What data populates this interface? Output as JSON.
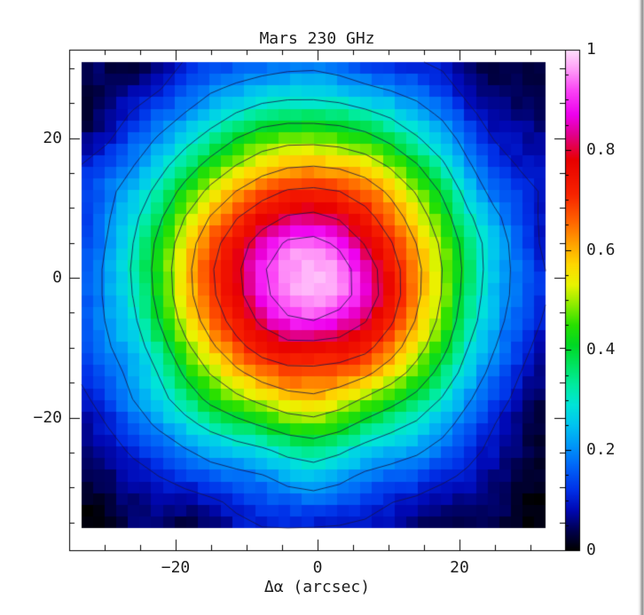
{
  "window": {
    "background_color": "#ffffff",
    "border_color": "#8e8e8e"
  },
  "chart_data": {
    "type": "heatmap",
    "title": "Mars 230 GHz",
    "xlabel": "Δα (arcsec)",
    "ylabel": "",
    "xlim": [
      -35,
      34.9
    ],
    "ylim": [
      -39,
      32.6
    ],
    "grid": "off",
    "xticks": {
      "values": [
        -20,
        0,
        20
      ],
      "labels": [
        "−20",
        "0",
        "20"
      ],
      "minor_step": 5
    },
    "yticks": {
      "values": [
        -20,
        0,
        20
      ],
      "labels": [
        "−20",
        "0",
        "20"
      ],
      "minor_step": 5
    },
    "image_extent": {
      "x": [
        -33.25,
        32.125
      ],
      "y": [
        -35.81,
        30.86
      ]
    },
    "grid_cells": 40,
    "source": {
      "center_x": -1.5,
      "center_y": -0.3,
      "radial_profile_radius_arcsec": [
        0,
        4,
        6.3,
        9.4,
        13,
        16,
        19,
        22,
        25,
        29,
        34,
        40,
        48
      ],
      "radial_profile_value": [
        0.98,
        0.95,
        0.9,
        0.8,
        0.7,
        0.6,
        0.5,
        0.4,
        0.3,
        0.2,
        0.1,
        0.04,
        0.0
      ]
    },
    "contours": {
      "levels": [
        0.1,
        0.2,
        0.3,
        0.4,
        0.5,
        0.6,
        0.7,
        0.8,
        0.9
      ],
      "color": "#181448"
    },
    "noise": {
      "seed": 9,
      "amplitude": 0.03,
      "lattice": 8,
      "pixel_jitter": 0.02
    },
    "colormap": [
      [
        0.0,
        "#000000"
      ],
      [
        0.04,
        "#000050"
      ],
      [
        0.08,
        "#0008b4"
      ],
      [
        0.12,
        "#0030e8"
      ],
      [
        0.17,
        "#0068f8"
      ],
      [
        0.21,
        "#0098f8"
      ],
      [
        0.25,
        "#00c4f0"
      ],
      [
        0.29,
        "#00e4d8"
      ],
      [
        0.33,
        "#00eca0"
      ],
      [
        0.37,
        "#00e460"
      ],
      [
        0.41,
        "#00d824"
      ],
      [
        0.45,
        "#28e000"
      ],
      [
        0.49,
        "#8cec00"
      ],
      [
        0.53,
        "#e8f400"
      ],
      [
        0.57,
        "#ffd800"
      ],
      [
        0.61,
        "#ffa400"
      ],
      [
        0.66,
        "#ff6000"
      ],
      [
        0.71,
        "#f82400"
      ],
      [
        0.78,
        "#e80000"
      ],
      [
        0.83,
        "#e2008c"
      ],
      [
        0.87,
        "#ee00ee"
      ],
      [
        0.92,
        "#fb46f6"
      ],
      [
        0.96,
        "#ff9cf8"
      ],
      [
        1.0,
        "#ffe2fc"
      ]
    ],
    "colorbar": {
      "range": [
        0,
        1
      ],
      "tick_values": [
        0,
        0.2,
        0.4,
        0.6,
        0.8,
        1
      ],
      "tick_labels": [
        "0",
        "0.2",
        "0.4",
        "0.6",
        "0.8",
        "1"
      ],
      "minor_step": 0.05,
      "position": "right"
    }
  }
}
